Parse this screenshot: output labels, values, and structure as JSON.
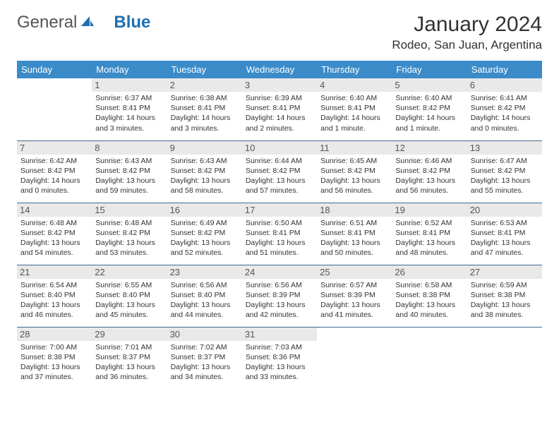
{
  "logo": {
    "text1": "General",
    "text2": "Blue"
  },
  "title": "January 2024",
  "location": "Rodeo, San Juan, Argentina",
  "colors": {
    "header_bg": "#3b8bc9",
    "header_text": "#ffffff",
    "divider": "#3b6a94",
    "daynum_bg": "#e9e9e9",
    "brand_blue": "#1f6fb2"
  },
  "weekdays": [
    "Sunday",
    "Monday",
    "Tuesday",
    "Wednesday",
    "Thursday",
    "Friday",
    "Saturday"
  ],
  "weeks": [
    [
      null,
      {
        "n": "1",
        "sr": "6:37 AM",
        "ss": "8:41 PM",
        "dl": "14 hours and 3 minutes."
      },
      {
        "n": "2",
        "sr": "6:38 AM",
        "ss": "8:41 PM",
        "dl": "14 hours and 3 minutes."
      },
      {
        "n": "3",
        "sr": "6:39 AM",
        "ss": "8:41 PM",
        "dl": "14 hours and 2 minutes."
      },
      {
        "n": "4",
        "sr": "6:40 AM",
        "ss": "8:41 PM",
        "dl": "14 hours and 1 minute."
      },
      {
        "n": "5",
        "sr": "6:40 AM",
        "ss": "8:42 PM",
        "dl": "14 hours and 1 minute."
      },
      {
        "n": "6",
        "sr": "6:41 AM",
        "ss": "8:42 PM",
        "dl": "14 hours and 0 minutes."
      }
    ],
    [
      {
        "n": "7",
        "sr": "6:42 AM",
        "ss": "8:42 PM",
        "dl": "14 hours and 0 minutes."
      },
      {
        "n": "8",
        "sr": "6:43 AM",
        "ss": "8:42 PM",
        "dl": "13 hours and 59 minutes."
      },
      {
        "n": "9",
        "sr": "6:43 AM",
        "ss": "8:42 PM",
        "dl": "13 hours and 58 minutes."
      },
      {
        "n": "10",
        "sr": "6:44 AM",
        "ss": "8:42 PM",
        "dl": "13 hours and 57 minutes."
      },
      {
        "n": "11",
        "sr": "6:45 AM",
        "ss": "8:42 PM",
        "dl": "13 hours and 56 minutes."
      },
      {
        "n": "12",
        "sr": "6:46 AM",
        "ss": "8:42 PM",
        "dl": "13 hours and 56 minutes."
      },
      {
        "n": "13",
        "sr": "6:47 AM",
        "ss": "8:42 PM",
        "dl": "13 hours and 55 minutes."
      }
    ],
    [
      {
        "n": "14",
        "sr": "6:48 AM",
        "ss": "8:42 PM",
        "dl": "13 hours and 54 minutes."
      },
      {
        "n": "15",
        "sr": "6:48 AM",
        "ss": "8:42 PM",
        "dl": "13 hours and 53 minutes."
      },
      {
        "n": "16",
        "sr": "6:49 AM",
        "ss": "8:42 PM",
        "dl": "13 hours and 52 minutes."
      },
      {
        "n": "17",
        "sr": "6:50 AM",
        "ss": "8:41 PM",
        "dl": "13 hours and 51 minutes."
      },
      {
        "n": "18",
        "sr": "6:51 AM",
        "ss": "8:41 PM",
        "dl": "13 hours and 50 minutes."
      },
      {
        "n": "19",
        "sr": "6:52 AM",
        "ss": "8:41 PM",
        "dl": "13 hours and 48 minutes."
      },
      {
        "n": "20",
        "sr": "6:53 AM",
        "ss": "8:41 PM",
        "dl": "13 hours and 47 minutes."
      }
    ],
    [
      {
        "n": "21",
        "sr": "6:54 AM",
        "ss": "8:40 PM",
        "dl": "13 hours and 46 minutes."
      },
      {
        "n": "22",
        "sr": "6:55 AM",
        "ss": "8:40 PM",
        "dl": "13 hours and 45 minutes."
      },
      {
        "n": "23",
        "sr": "6:56 AM",
        "ss": "8:40 PM",
        "dl": "13 hours and 44 minutes."
      },
      {
        "n": "24",
        "sr": "6:56 AM",
        "ss": "8:39 PM",
        "dl": "13 hours and 42 minutes."
      },
      {
        "n": "25",
        "sr": "6:57 AM",
        "ss": "8:39 PM",
        "dl": "13 hours and 41 minutes."
      },
      {
        "n": "26",
        "sr": "6:58 AM",
        "ss": "8:38 PM",
        "dl": "13 hours and 40 minutes."
      },
      {
        "n": "27",
        "sr": "6:59 AM",
        "ss": "8:38 PM",
        "dl": "13 hours and 38 minutes."
      }
    ],
    [
      {
        "n": "28",
        "sr": "7:00 AM",
        "ss": "8:38 PM",
        "dl": "13 hours and 37 minutes."
      },
      {
        "n": "29",
        "sr": "7:01 AM",
        "ss": "8:37 PM",
        "dl": "13 hours and 36 minutes."
      },
      {
        "n": "30",
        "sr": "7:02 AM",
        "ss": "8:37 PM",
        "dl": "13 hours and 34 minutes."
      },
      {
        "n": "31",
        "sr": "7:03 AM",
        "ss": "8:36 PM",
        "dl": "13 hours and 33 minutes."
      },
      null,
      null,
      null
    ]
  ],
  "labels": {
    "sunrise": "Sunrise: ",
    "sunset": "Sunset: ",
    "daylight": "Daylight: "
  }
}
